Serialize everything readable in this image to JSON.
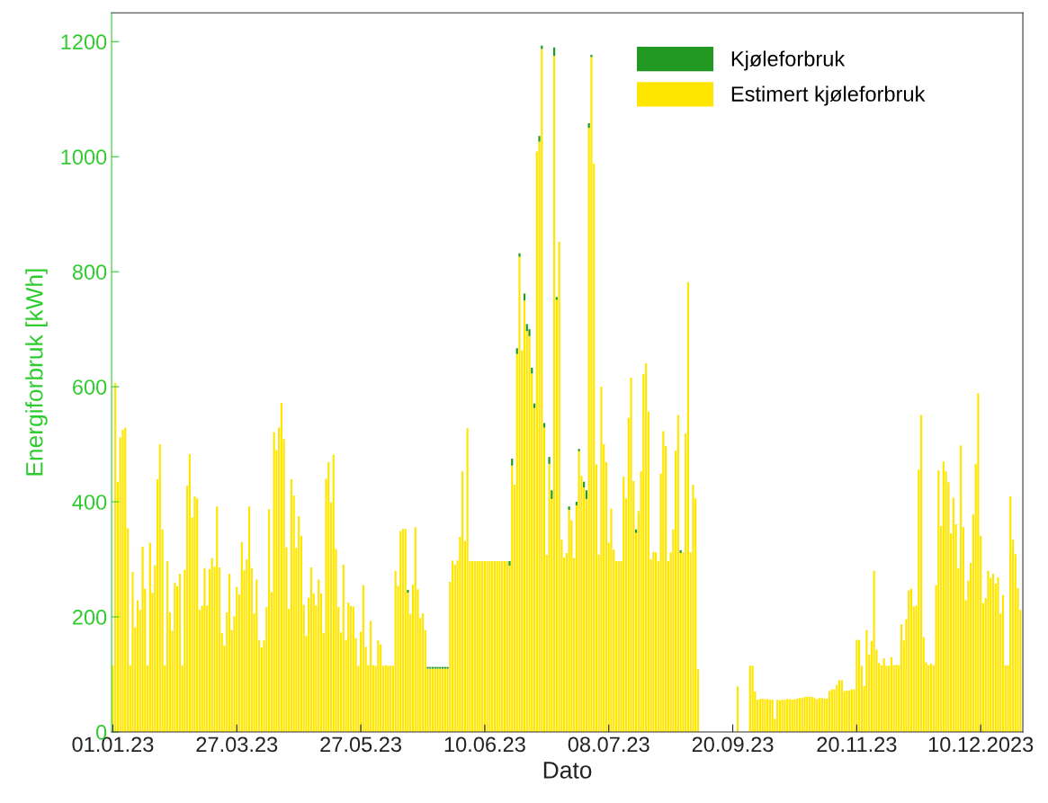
{
  "chart_data": {
    "type": "bar",
    "stacked": true,
    "xlabel": "Dato",
    "ylabel": "Energiforbruk [kWh]",
    "ylim": [
      0,
      1250
    ],
    "yticks": [
      0,
      200,
      400,
      600,
      800,
      1000,
      1200
    ],
    "grid": false,
    "legend": "top right",
    "categories": [
      "01.01.23",
      null,
      null,
      null,
      null,
      null,
      null,
      null,
      null,
      null,
      null,
      null,
      null,
      null,
      null,
      null,
      null,
      null,
      null,
      null,
      null,
      null,
      null,
      null,
      null,
      null,
      null,
      null,
      null,
      null,
      null,
      null,
      null,
      null,
      null,
      null,
      null,
      null,
      null,
      null,
      null,
      null,
      null,
      null,
      null,
      null,
      null,
      null,
      null,
      null,
      "27.03.23",
      null,
      null,
      null,
      null,
      null,
      null,
      null,
      null,
      null,
      null,
      null,
      null,
      null,
      null,
      null,
      null,
      null,
      null,
      null,
      null,
      null,
      null,
      null,
      null,
      null,
      null,
      null,
      null,
      null,
      null,
      null,
      null,
      null,
      null,
      null,
      null,
      null,
      null,
      null,
      null,
      null,
      null,
      null,
      null,
      null,
      null,
      null,
      null,
      null,
      "27.05.23",
      null,
      null,
      null,
      null,
      null,
      null,
      null,
      null,
      null,
      null,
      null,
      null,
      null,
      null,
      null,
      null,
      null,
      null,
      null,
      null,
      null,
      null,
      null,
      null,
      null,
      null,
      null,
      null,
      null,
      null,
      null,
      null,
      null,
      null,
      null,
      null,
      null,
      null,
      null,
      null,
      null,
      null,
      null,
      null,
      null,
      null,
      null,
      null,
      null,
      "10.06.23",
      null,
      null,
      null,
      null,
      null,
      null,
      null,
      null,
      null,
      null,
      null,
      null,
      null,
      null,
      null,
      null,
      null,
      null,
      null,
      null,
      null,
      null,
      null,
      null,
      null,
      null,
      null,
      null,
      null,
      null,
      null,
      null,
      null,
      null,
      null,
      null,
      null,
      null,
      null,
      null,
      null,
      null,
      null,
      null,
      null,
      null,
      null,
      null,
      null,
      "08.07.23",
      null,
      null,
      null,
      null,
      null,
      null,
      null,
      null,
      null,
      null,
      null,
      null,
      null,
      null,
      null,
      null,
      null,
      null,
      null,
      null,
      null,
      null,
      null,
      null,
      null,
      null,
      null,
      null,
      null,
      null,
      null,
      null,
      null,
      null,
      null,
      null,
      null,
      null,
      null,
      null,
      null,
      null,
      null,
      null,
      null,
      null,
      null,
      null,
      null,
      "20.09.23",
      null,
      null,
      null,
      null,
      null,
      null,
      null,
      null,
      null,
      null,
      null,
      null,
      null,
      null,
      null,
      null,
      null,
      null,
      null,
      null,
      null,
      null,
      null,
      null,
      null,
      null,
      null,
      null,
      null,
      null,
      null,
      null,
      null,
      null,
      null,
      null,
      null,
      null,
      null,
      null,
      null,
      null,
      null,
      null,
      null,
      null,
      null,
      null,
      null,
      "20.11.23",
      null,
      null,
      null,
      null,
      null,
      null,
      null,
      null,
      null,
      null,
      null,
      null,
      null,
      null,
      null,
      null,
      null,
      null,
      null,
      null,
      null,
      null,
      null,
      null,
      null,
      null,
      null,
      null,
      null,
      null,
      null,
      null,
      null,
      null,
      null,
      null,
      null,
      null,
      null,
      null,
      null,
      null,
      null,
      null,
      null,
      null,
      null,
      null,
      null,
      "10.12.2023",
      null,
      null,
      null,
      null,
      null,
      null,
      null,
      null,
      null,
      null,
      null,
      null,
      null,
      null,
      null,
      null
    ],
    "series": [
      {
        "name": "Estimert kjøleforbruk",
        "color": "#ffe600",
        "values": [
          116,
          607,
          435,
          512,
          525,
          529,
          354,
          116,
          278,
          182,
          229,
          212,
          322,
          249,
          116,
          329,
          242,
          290,
          439,
          500,
          352,
          116,
          297,
          208,
          176,
          259,
          253,
          275,
          116,
          282,
          428,
          483,
          373,
          409,
          406,
          212,
          219,
          285,
          220,
          283,
          302,
          287,
          392,
          286,
          172,
          150,
          208,
          275,
          177,
          201,
          252,
          239,
          330,
          281,
          300,
          392,
          285,
          206,
          265,
          160,
          147,
          159,
          217,
          387,
          243,
          521,
          490,
          529,
          572,
          509,
          321,
          214,
          439,
          411,
          320,
          375,
          341,
          221,
          167,
          233,
          286,
          241,
          220,
          265,
          241,
          172,
          440,
          469,
          399,
          482,
          318,
          217,
          173,
          291,
          160,
          225,
          219,
          218,
          163,
          115,
          174,
          255,
          148,
          116,
          193,
          116,
          115,
          159,
          152,
          115,
          116,
          115,
          115,
          115,
          280,
          254,
          349,
          353,
          353,
          242,
          205,
          256,
          356,
          248,
          198,
          206,
          177,
          110,
          110,
          110,
          110,
          110,
          110,
          110,
          110,
          110,
          261,
          298,
          291,
          298,
          339,
          453,
          332,
          528,
          297,
          297,
          297,
          297,
          297,
          297,
          297,
          297,
          297,
          297,
          297,
          297,
          297,
          297,
          297,
          297,
          289,
          463,
          430,
          657,
          826,
          663,
          750,
          697,
          688,
          623,
          563,
          1009,
          1026,
          1187,
          529,
          308,
          466,
          405,
          1175,
          751,
          852,
          334,
          303,
          311,
          386,
          368,
          302,
          394,
          488,
          445,
          425,
          405,
          1050,
          1173,
          988,
          465,
          308,
          600,
          500,
          469,
          329,
          388,
          317,
          297,
          297,
          297,
          444,
          406,
          546,
          616,
          436,
          346,
          384,
          453,
          622,
          641,
          557,
          300,
          313,
          312,
          297,
          449,
          523,
          497,
          297,
          312,
          352,
          489,
          551,
          311,
          312,
          519,
          782,
          312,
          430,
          406,
          109,
          null,
          null,
          null,
          null,
          null,
          null,
          null,
          null,
          null,
          null,
          null,
          null,
          null,
          null,
          null,
          79,
          null,
          null,
          null,
          null,
          115,
          115,
          70,
          56,
          57,
          58,
          57,
          57,
          56,
          56,
          23,
          56,
          55,
          56,
          56,
          57,
          57,
          56,
          57,
          58,
          59,
          59,
          61,
          61,
          61,
          61,
          59,
          57,
          59,
          59,
          58,
          58,
          71,
          74,
          74,
          82,
          90,
          90,
          71,
          72,
          72,
          74,
          74,
          160,
          160,
          115,
          80,
          177,
          134,
          158,
          280,
          143,
          120,
          116,
          128,
          115,
          115,
          130,
          116,
          117,
          116,
          187,
          159,
          196,
          246,
          249,
          218,
          220,
          456,
          551,
          165,
          121,
          116,
          119,
          116,
          255,
          455,
          358,
          470,
          453,
          434,
          345,
          407,
          361,
          285,
          498,
          356,
          229,
          263,
          294,
          378,
          466,
          589,
          341,
          224,
          233,
          280,
          268,
          275,
          258,
          269,
          206,
          238,
          116,
          116,
          410,
          334,
          309,
          250,
          212
        ]
      },
      {
        "name": "Kjøleforbruk",
        "color": "#229922",
        "values": [
          null,
          null,
          null,
          null,
          null,
          null,
          null,
          null,
          null,
          null,
          null,
          null,
          null,
          null,
          null,
          null,
          null,
          null,
          null,
          null,
          null,
          null,
          null,
          null,
          null,
          null,
          null,
          null,
          null,
          null,
          null,
          null,
          null,
          null,
          null,
          null,
          null,
          null,
          null,
          null,
          null,
          null,
          null,
          null,
          null,
          null,
          null,
          null,
          null,
          null,
          null,
          null,
          null,
          null,
          null,
          null,
          null,
          null,
          null,
          null,
          null,
          null,
          null,
          null,
          null,
          null,
          null,
          null,
          null,
          null,
          null,
          null,
          null,
          null,
          null,
          null,
          null,
          null,
          null,
          null,
          null,
          null,
          null,
          null,
          null,
          null,
          null,
          null,
          null,
          null,
          null,
          null,
          null,
          null,
          null,
          null,
          null,
          null,
          null,
          null,
          null,
          null,
          null,
          null,
          null,
          null,
          null,
          null,
          null,
          null,
          null,
          null,
          null,
          null,
          null,
          null,
          null,
          null,
          null,
          5,
          null,
          null,
          null,
          null,
          null,
          null,
          null,
          3,
          3,
          3,
          3,
          3,
          3,
          3,
          3,
          3,
          null,
          null,
          null,
          null,
          null,
          null,
          null,
          null,
          null,
          null,
          null,
          null,
          null,
          null,
          null,
          null,
          null,
          null,
          null,
          null,
          null,
          null,
          null,
          null,
          8,
          12,
          null,
          10,
          6,
          null,
          12,
          12,
          12,
          10,
          8,
          null,
          10,
          6,
          8,
          null,
          12,
          15,
          15,
          5,
          null,
          null,
          null,
          null,
          6,
          null,
          null,
          6,
          4,
          null,
          10,
          15,
          8,
          4,
          null,
          null,
          null,
          null,
          null,
          null,
          null,
          null,
          null,
          null,
          null,
          null,
          null,
          null,
          null,
          null,
          null,
          6,
          null,
          null,
          null,
          null,
          null,
          null,
          null,
          null,
          null,
          null,
          null,
          null,
          null,
          null,
          null,
          null,
          null,
          5,
          null,
          null,
          null,
          null,
          null,
          null,
          null,
          null,
          null,
          null,
          null,
          null,
          null,
          null,
          null,
          null,
          null,
          null,
          null,
          null,
          null,
          null,
          null,
          null,
          null,
          null,
          null,
          null,
          null,
          null,
          null,
          null,
          null,
          null,
          null,
          null,
          null,
          null,
          null,
          null,
          null,
          null,
          null,
          null,
          null,
          null,
          null,
          null,
          null,
          null,
          null,
          null,
          null,
          null,
          null,
          null,
          null,
          null,
          null,
          null,
          null,
          null,
          null,
          null,
          null,
          null,
          null,
          null,
          null,
          null,
          null,
          null,
          null,
          null,
          null,
          null,
          null,
          null,
          null,
          null,
          null,
          null,
          null,
          null,
          null,
          null,
          null,
          null,
          null,
          null,
          null,
          null,
          null,
          null,
          null,
          null,
          null,
          null,
          null,
          null,
          null,
          null,
          null,
          null,
          null,
          null,
          null,
          null,
          null,
          null,
          null,
          null,
          null,
          null,
          null,
          null,
          null,
          null,
          null,
          null,
          null,
          null,
          null,
          null,
          null,
          null,
          null,
          null,
          null,
          null,
          null,
          null,
          null,
          null,
          null,
          null,
          null
        ]
      }
    ]
  }
}
